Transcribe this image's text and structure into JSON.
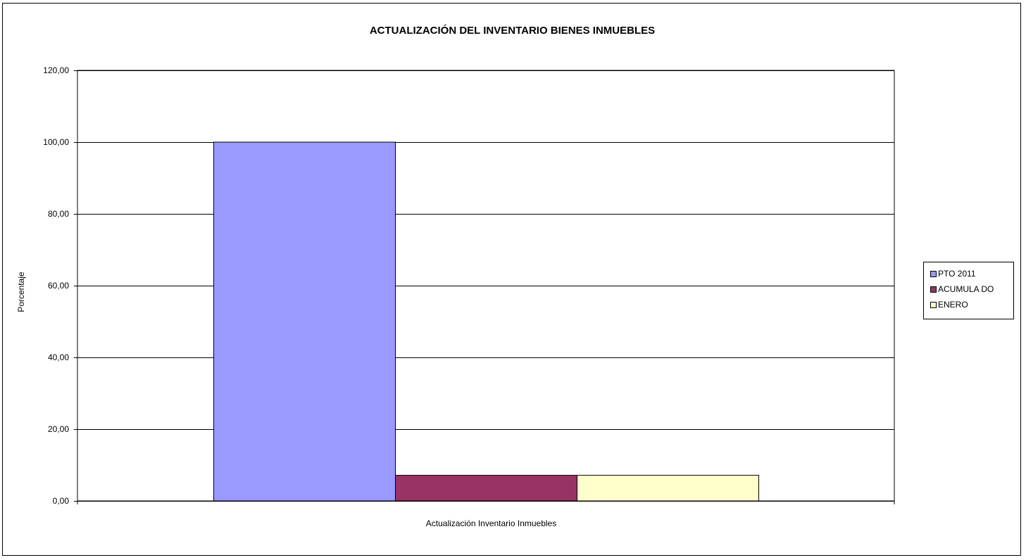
{
  "chart_data": {
    "type": "bar",
    "title": "ACTUALIZACIÓN  DEL INVENTARIO BIENES INMUEBLES",
    "xlabel": "Actualización Inventario  Inmuebles",
    "ylabel": "Porcentaje",
    "categories": [
      "Actualización Inventario  Inmuebles"
    ],
    "series": [
      {
        "name": "PTO  2011",
        "values": [
          100.0
        ],
        "color": "#9999FF"
      },
      {
        "name": "ACUMULA DO",
        "values": [
          7.14
        ],
        "color": "#993366"
      },
      {
        "name": "ENERO",
        "values": [
          7.14
        ],
        "color": "#FFFFCC"
      }
    ],
    "ylim": [
      0,
      120
    ],
    "yticks": [
      "0,00",
      "20,00",
      "40,00",
      "60,00",
      "80,00",
      "100,00",
      "120,00"
    ],
    "ytick_values": [
      0,
      20,
      40,
      60,
      80,
      100,
      120
    ],
    "grid": true,
    "legend_position": "right"
  }
}
